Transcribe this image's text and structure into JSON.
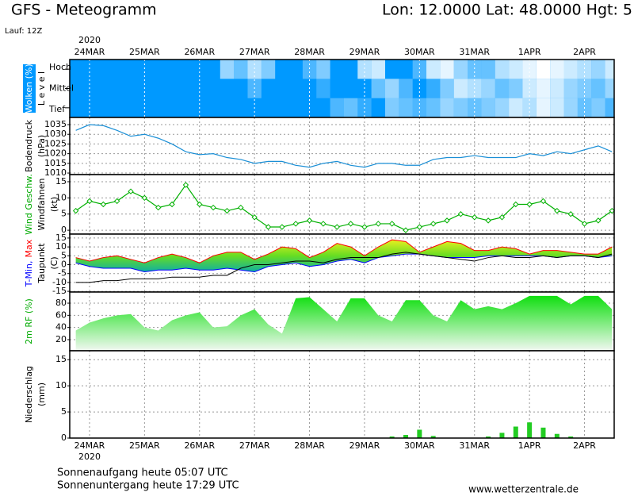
{
  "header": {
    "title": "GFS - Meteogramm",
    "location": "Lon: 12.0000 Lat: 48.0000 Hgt: 5",
    "run": "Lauf: 12Z"
  },
  "time_axis": {
    "year": "2020",
    "xlim": [
      -0.36,
      9.54
    ],
    "xticks": [
      {
        "value": 0,
        "label": "24MAR"
      },
      {
        "value": 1,
        "label": "25MAR"
      },
      {
        "value": 2,
        "label": "26MAR"
      },
      {
        "value": 3,
        "label": "27MAR"
      },
      {
        "value": 4,
        "label": "28MAR"
      },
      {
        "value": 5,
        "label": "29MAR"
      },
      {
        "value": 6,
        "label": "30MAR"
      },
      {
        "value": 7,
        "label": "31MAR"
      },
      {
        "value": 8,
        "label": "1APR"
      },
      {
        "value": 9,
        "label": "2APR"
      }
    ],
    "x": [
      -0.25,
      0,
      0.25,
      0.5,
      0.75,
      1,
      1.25,
      1.5,
      1.75,
      2,
      2.25,
      2.5,
      2.75,
      3,
      3.25,
      3.5,
      3.75,
      4,
      4.25,
      4.5,
      4.75,
      5,
      5.25,
      5.5,
      5.75,
      6,
      6.25,
      6.5,
      6.75,
      7,
      7.25,
      7.5,
      7.75,
      8,
      8.25,
      8.5,
      8.75,
      9,
      9.25,
      9.5
    ]
  },
  "chart_data": [
    {
      "type": "cloud-levels",
      "ylabel": [
        [
          {
            "text": "Wolken (%)",
            "color": "#ffffff"
          }
        ],
        [
          {
            "text": "L e v e l"
          }
        ]
      ],
      "label_box_color": "#0099ff",
      "background": "#0099ff",
      "cloud_color": "#ffffff",
      "levels": [
        "Hoch",
        "Mittel",
        "Tief"
      ],
      "series": [
        {
          "values": [
            0,
            0,
            0,
            0,
            0,
            0,
            0,
            0,
            0,
            0,
            0,
            60,
            40,
            70,
            50,
            0,
            0,
            30,
            50,
            0,
            0,
            70,
            80,
            0,
            0,
            30,
            80,
            90,
            60,
            40,
            40,
            70,
            80,
            90,
            100,
            90,
            80,
            70,
            60,
            80
          ]
        },
        {
          "values": [
            0,
            0,
            0,
            0,
            0,
            0,
            0,
            0,
            0,
            0,
            0,
            0,
            0,
            30,
            0,
            0,
            0,
            0,
            20,
            0,
            0,
            0,
            40,
            60,
            30,
            0,
            20,
            50,
            80,
            70,
            60,
            40,
            50,
            80,
            90,
            80,
            60,
            50,
            40,
            60
          ]
        },
        {
          "values": [
            0,
            0,
            0,
            0,
            0,
            0,
            0,
            0,
            0,
            0,
            0,
            0,
            0,
            0,
            0,
            0,
            0,
            0,
            0,
            30,
            40,
            20,
            0,
            50,
            40,
            30,
            40,
            60,
            50,
            40,
            50,
            60,
            80,
            70,
            90,
            80,
            60,
            40,
            50,
            30
          ]
        }
      ]
    },
    {
      "type": "line",
      "ylabel": [
        [
          {
            "text": "Bodendruck"
          }
        ],
        [
          {
            "text": "(hPa)"
          }
        ]
      ],
      "ylim": [
        1009.2,
        1038.7
      ],
      "yticks": [
        1010,
        1015,
        1020,
        1025,
        1030,
        1035
      ],
      "grid": true,
      "series": [
        {
          "color": "#1a8fd6",
          "values": [
            1032,
            1035,
            1034.5,
            1032,
            1029,
            1030,
            1028,
            1025,
            1021,
            1019.5,
            1020,
            1018,
            1017,
            1015,
            1016,
            1016,
            1014,
            1013,
            1015,
            1016,
            1014,
            1013,
            1015,
            1015,
            1014,
            1014,
            1017,
            1018,
            1018,
            1019,
            1018,
            1018,
            1018,
            1020,
            1019,
            1021,
            1020,
            1022,
            1024,
            1021
          ]
        }
      ]
    },
    {
      "type": "line-markers",
      "ylabel": [
        [
          {
            "text": "Wind Geschw.",
            "color": "#00aa00"
          }
        ],
        [
          {
            "text": "Windfahnen"
          }
        ],
        [
          {
            "text": "(kt)"
          }
        ]
      ],
      "ylim": [
        -1.2,
        17.2
      ],
      "yticks": [
        0,
        5,
        10,
        15
      ],
      "grid": true,
      "series": [
        {
          "color": "#00b000",
          "values": [
            6,
            9,
            8,
            9,
            12,
            10,
            7,
            8,
            14,
            8,
            7,
            6,
            7,
            4,
            1,
            1,
            2,
            3,
            2,
            1,
            2,
            1,
            2,
            2,
            0,
            1,
            2,
            3,
            5,
            4,
            3,
            4,
            8,
            8,
            9,
            6,
            5,
            2,
            3,
            6
          ]
        }
      ]
    },
    {
      "type": "temperature",
      "ylabel": [
        [
          {
            "text": "T-Min,",
            "color": "#0000ff"
          },
          {
            "text": "Max",
            "color": "#ff0000"
          }
        ],
        [
          {
            "text": "Taupunkt"
          }
        ],
        [
          {
            "text": "(C)"
          }
        ]
      ],
      "ylim": [
        -15.4,
        17.2
      ],
      "yticks": [
        -15,
        -10,
        -5,
        0,
        5,
        10,
        15
      ],
      "grid": true,
      "series": [
        {
          "color": "#ff0000",
          "values": [
            4,
            2,
            4,
            5,
            3,
            1,
            4,
            6,
            4,
            1,
            5,
            7,
            7,
            3,
            6,
            10,
            9,
            4,
            7,
            12,
            10,
            5,
            10,
            14,
            13,
            7,
            10,
            13,
            12,
            8,
            8,
            10,
            9,
            6,
            8,
            8,
            7,
            6,
            6,
            10
          ]
        },
        {
          "color": "#0000ff",
          "values": [
            1,
            -1,
            -2,
            -2,
            -2,
            -4,
            -3,
            -3,
            -2,
            -3,
            -3,
            -2,
            -3,
            -4,
            -1,
            0,
            1,
            -1,
            0,
            2,
            3,
            1,
            4,
            5,
            6,
            6,
            5,
            4,
            4,
            4,
            5,
            5,
            5,
            5,
            5,
            4,
            5,
            5,
            4,
            5
          ]
        },
        {
          "color": "#000000",
          "values": [
            -10,
            -10,
            -9,
            -9,
            -8,
            -8,
            -8,
            -7,
            -7,
            -7,
            -6,
            -6,
            -2,
            0,
            0,
            1,
            2,
            2,
            1,
            3,
            4,
            4,
            4,
            6,
            7,
            6,
            5,
            4,
            3,
            2,
            4,
            5,
            4,
            4,
            5,
            4,
            5,
            5,
            4,
            6
          ]
        }
      ]
    },
    {
      "type": "area",
      "ylabel": [
        [
          {
            "text": "2m RF (%)",
            "color": "#00aa00"
          }
        ]
      ],
      "ylim": [
        1.7,
        98.3
      ],
      "yticks": [
        20,
        40,
        60,
        80
      ],
      "grid": true,
      "series": [
        {
          "color": "#00dd00",
          "values": [
            35,
            48,
            55,
            60,
            62,
            40,
            35,
            52,
            60,
            65,
            40,
            42,
            60,
            70,
            45,
            30,
            88,
            90,
            70,
            50,
            88,
            88,
            60,
            50,
            85,
            85,
            60,
            50,
            85,
            70,
            75,
            70,
            80,
            92,
            92,
            92,
            78,
            92,
            92,
            70
          ]
        }
      ]
    },
    {
      "type": "bar",
      "ylabel": [
        [
          {
            "text": "Niederschlag"
          }
        ],
        [
          {
            "text": "(mm)"
          }
        ]
      ],
      "ylim": [
        0,
        16.7
      ],
      "yticks": [
        0,
        5,
        10,
        15
      ],
      "grid": true,
      "series": [
        {
          "color": "#22cc22",
          "values": [
            0,
            0,
            0,
            0,
            0,
            0,
            0,
            0,
            0,
            0,
            0,
            0,
            0,
            0,
            0,
            0,
            0,
            0,
            0,
            0,
            0,
            0,
            0,
            0.3,
            0.6,
            1.6,
            0.4,
            0,
            0,
            0,
            0.3,
            1.0,
            2.2,
            3.0,
            2.0,
            0.8,
            0.3,
            0,
            0,
            0
          ]
        }
      ]
    }
  ],
  "footer": {
    "sunrise": "Sonnenaufgang heute 05:07 UTC",
    "sunset": "Sonnenuntergang heute 17:29 UTC",
    "source": "www.wetterzentrale.de"
  }
}
